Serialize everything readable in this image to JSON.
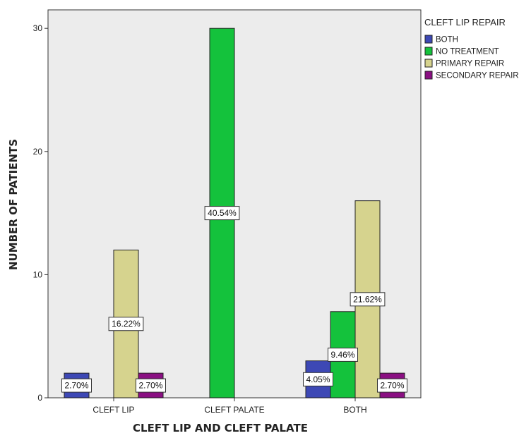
{
  "chart_data": {
    "type": "bar",
    "xlabel": "CLEFT LIP AND CLEFT PALATE",
    "ylabel": "NUMBER OF PATIENTS",
    "ylim": [
      0,
      31.5
    ],
    "yticks": [
      0,
      10,
      20,
      30
    ],
    "categories": [
      "CLEFT LIP",
      "CLEFT PALATE",
      "BOTH"
    ],
    "legend_title": "CLEFT LIP REPAIR",
    "legend_position": "right",
    "grid": false,
    "plot_background": "#ececec",
    "series": [
      {
        "name": "BOTH",
        "color": "#3d48b5",
        "values": [
          2,
          0,
          3
        ],
        "labels": [
          "2.70%",
          "",
          "4.05%"
        ]
      },
      {
        "name": "NO TREATMENT",
        "color": "#14c23c",
        "values": [
          0,
          30,
          7
        ],
        "labels": [
          "",
          "40.54%",
          "9.46%"
        ]
      },
      {
        "name": "PRIMARY REPAIR",
        "color": "#d6d38e",
        "values": [
          12,
          0,
          16
        ],
        "labels": [
          "16.22%",
          "",
          "21.62%"
        ]
      },
      {
        "name": "SECONDARY REPAIR",
        "color": "#8a0f82",
        "values": [
          2,
          0,
          2
        ],
        "labels": [
          "2.70%",
          "",
          "2.70%"
        ]
      }
    ]
  }
}
